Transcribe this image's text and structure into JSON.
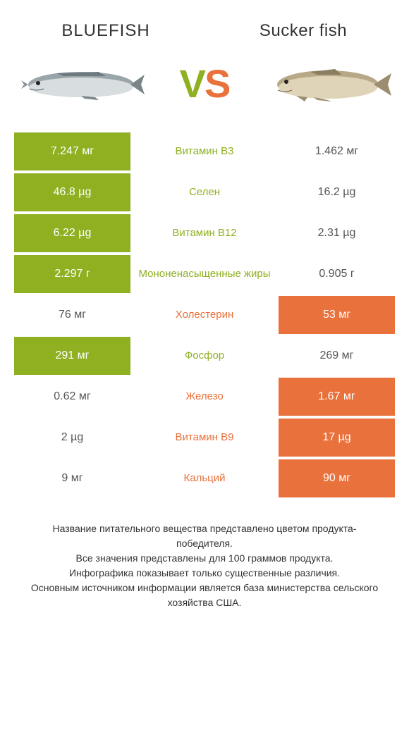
{
  "left": {
    "title": "BLUEFISH"
  },
  "right": {
    "title": "Sucker fish"
  },
  "vs": {
    "v": "V",
    "s": "S"
  },
  "colors": {
    "left_win": "#8eb021",
    "right_win": "#e8713c",
    "text": "#333333",
    "bg": "#ffffff"
  },
  "rows": [
    {
      "left_val": "7.247 мг",
      "label": "Витамин B3",
      "right_val": "1.462 мг",
      "winner": "left"
    },
    {
      "left_val": "46.8 µg",
      "label": "Селен",
      "right_val": "16.2 µg",
      "winner": "left"
    },
    {
      "left_val": "6.22 µg",
      "label": "Витамин B12",
      "right_val": "2.31 µg",
      "winner": "left"
    },
    {
      "left_val": "2.297 г",
      "label": "Мононенасыщенные жиры",
      "right_val": "0.905 г",
      "winner": "left"
    },
    {
      "left_val": "76 мг",
      "label": "Холестерин",
      "right_val": "53 мг",
      "winner": "right"
    },
    {
      "left_val": "291 мг",
      "label": "Фосфор",
      "right_val": "269 мг",
      "winner": "left"
    },
    {
      "left_val": "0.62 мг",
      "label": "Железо",
      "right_val": "1.67 мг",
      "winner": "right"
    },
    {
      "left_val": "2 µg",
      "label": "Витамин B9",
      "right_val": "17 µg",
      "winner": "right"
    },
    {
      "left_val": "9 мг",
      "label": "Кальций",
      "right_val": "90 мг",
      "winner": "right"
    }
  ],
  "footer": {
    "line1": "Название питательного вещества представлено цветом продукта-победителя.",
    "line2": "Все значения представлены для 100 граммов продукта.",
    "line3": "Инфографика показывает только существенные различия.",
    "line4": "Основным источником информации является база министерства сельского хозяйства США."
  }
}
